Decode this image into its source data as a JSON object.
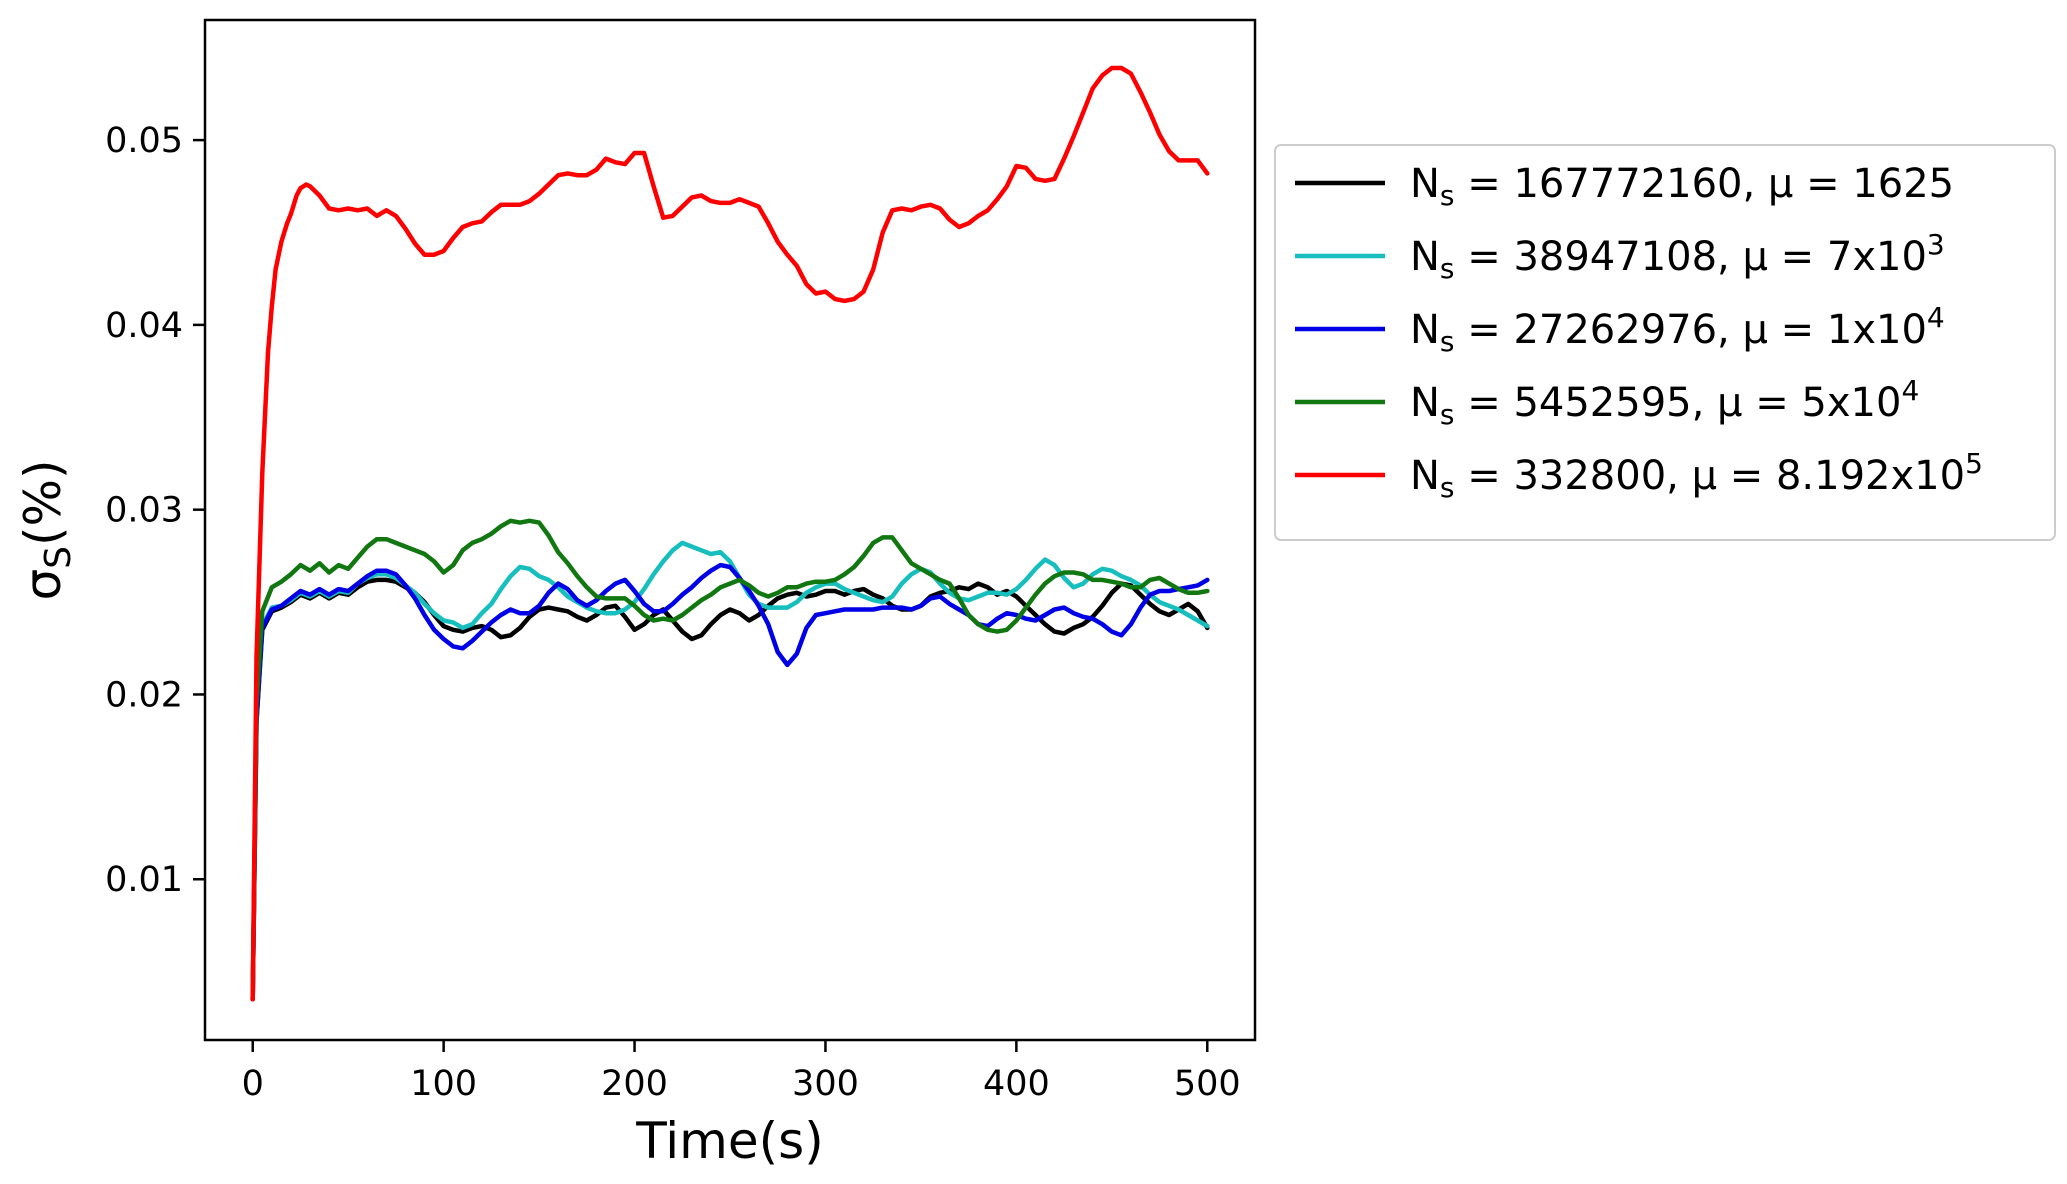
{
  "chart_data": {
    "type": "line",
    "title": "",
    "xlabel": "Time(s)",
    "ylabel": {
      "main": "σ",
      "sub": "S",
      "suffix": "(%)"
    },
    "xlim": [
      -25,
      525
    ],
    "ylim": [
      0.0013,
      0.0565
    ],
    "xticks": [
      0,
      100,
      200,
      300,
      400,
      500
    ],
    "xtick_labels": [
      "0",
      "100",
      "200",
      "300",
      "400",
      "500"
    ],
    "yticks": [
      0.01,
      0.02,
      0.03,
      0.04,
      0.05
    ],
    "ytick_labels": [
      "0.01",
      "0.02",
      "0.03",
      "0.04",
      "0.05"
    ],
    "grid": false,
    "legend_position": "outside-right-top",
    "series": [
      {
        "name": "N_s = 167772160, μ = 1625",
        "legend": {
          "n": "N",
          "nsub": "s",
          "eq1": " = 167772160, μ = 1625",
          "sup": ""
        },
        "color": "#000000",
        "x": [
          0,
          2,
          5,
          10,
          15,
          20,
          25,
          30,
          35,
          40,
          45,
          50,
          55,
          60,
          65,
          70,
          75,
          80,
          85,
          90,
          95,
          100,
          105,
          110,
          115,
          120,
          125,
          130,
          135,
          140,
          145,
          150,
          155,
          160,
          165,
          170,
          175,
          180,
          185,
          190,
          195,
          200,
          205,
          210,
          215,
          220,
          225,
          230,
          235,
          240,
          245,
          250,
          255,
          260,
          265,
          270,
          275,
          280,
          285,
          290,
          295,
          300,
          305,
          310,
          315,
          320,
          325,
          330,
          335,
          340,
          345,
          350,
          355,
          360,
          365,
          370,
          375,
          380,
          385,
          390,
          395,
          400,
          405,
          410,
          415,
          420,
          425,
          430,
          435,
          440,
          445,
          450,
          455,
          460,
          465,
          470,
          475,
          480,
          485,
          490,
          495,
          500
        ],
        "y": [
          0.0035,
          0.0185,
          0.0235,
          0.0245,
          0.0247,
          0.025,
          0.0254,
          0.0252,
          0.0255,
          0.0252,
          0.0255,
          0.0254,
          0.0258,
          0.0261,
          0.0262,
          0.0262,
          0.0261,
          0.0258,
          0.0255,
          0.025,
          0.0243,
          0.0237,
          0.0235,
          0.0234,
          0.0236,
          0.0237,
          0.0235,
          0.0231,
          0.0232,
          0.0236,
          0.0242,
          0.0246,
          0.0247,
          0.0246,
          0.0245,
          0.0242,
          0.024,
          0.0243,
          0.0247,
          0.0248,
          0.0242,
          0.0235,
          0.0238,
          0.0243,
          0.0246,
          0.024,
          0.0234,
          0.023,
          0.0232,
          0.0238,
          0.0243,
          0.0246,
          0.0244,
          0.024,
          0.0243,
          0.0248,
          0.0252,
          0.0254,
          0.0255,
          0.0253,
          0.0254,
          0.0256,
          0.0256,
          0.0254,
          0.0256,
          0.0257,
          0.0254,
          0.0252,
          0.0248,
          0.0246,
          0.0246,
          0.0248,
          0.0253,
          0.0255,
          0.0256,
          0.0258,
          0.0257,
          0.026,
          0.0258,
          0.0254,
          0.0256,
          0.0253,
          0.0248,
          0.0243,
          0.0238,
          0.0234,
          0.0233,
          0.0236,
          0.0238,
          0.0242,
          0.0248,
          0.0255,
          0.026,
          0.0259,
          0.0254,
          0.0249,
          0.0245,
          0.0243,
          0.0246,
          0.0249,
          0.0245,
          0.0236
        ]
      },
      {
        "name": "N_s = 38947108, μ = 7x10^3",
        "legend": {
          "n": "N",
          "nsub": "s",
          "eq1": " = 38947108, μ = 7x10",
          "sup": "3"
        },
        "color": "#17bebe",
        "x": [
          0,
          2,
          5,
          10,
          15,
          20,
          25,
          30,
          35,
          40,
          45,
          50,
          55,
          60,
          65,
          70,
          75,
          80,
          85,
          90,
          95,
          100,
          105,
          110,
          115,
          120,
          125,
          130,
          135,
          140,
          145,
          150,
          155,
          160,
          165,
          170,
          175,
          180,
          185,
          190,
          195,
          200,
          205,
          210,
          215,
          220,
          225,
          230,
          235,
          240,
          245,
          250,
          255,
          260,
          265,
          270,
          275,
          280,
          285,
          290,
          295,
          300,
          305,
          310,
          315,
          320,
          325,
          330,
          335,
          340,
          345,
          350,
          355,
          360,
          365,
          370,
          375,
          380,
          385,
          390,
          395,
          400,
          405,
          410,
          415,
          420,
          425,
          430,
          435,
          440,
          445,
          450,
          455,
          460,
          465,
          470,
          475,
          480,
          485,
          490,
          495,
          500
        ],
        "y": [
          0.0035,
          0.0188,
          0.0237,
          0.0247,
          0.0248,
          0.0251,
          0.0255,
          0.0253,
          0.0256,
          0.0253,
          0.0256,
          0.0255,
          0.026,
          0.0263,
          0.0265,
          0.0265,
          0.0263,
          0.0259,
          0.0255,
          0.0249,
          0.0244,
          0.024,
          0.0239,
          0.0236,
          0.0238,
          0.0244,
          0.0249,
          0.0257,
          0.0264,
          0.0269,
          0.0268,
          0.0264,
          0.0262,
          0.0258,
          0.0253,
          0.025,
          0.0247,
          0.0245,
          0.0244,
          0.0244,
          0.0246,
          0.025,
          0.0257,
          0.0265,
          0.0272,
          0.0278,
          0.0282,
          0.028,
          0.0278,
          0.0276,
          0.0277,
          0.0272,
          0.0263,
          0.0254,
          0.0249,
          0.0247,
          0.0247,
          0.0247,
          0.025,
          0.0255,
          0.0258,
          0.026,
          0.026,
          0.0257,
          0.0255,
          0.0253,
          0.0251,
          0.025,
          0.0253,
          0.026,
          0.0265,
          0.0268,
          0.0266,
          0.026,
          0.0255,
          0.0252,
          0.0251,
          0.0253,
          0.0255,
          0.0255,
          0.0254,
          0.0257,
          0.0262,
          0.0268,
          0.0273,
          0.027,
          0.0263,
          0.0258,
          0.026,
          0.0265,
          0.0268,
          0.0267,
          0.0264,
          0.0262,
          0.0259,
          0.0254,
          0.025,
          0.0248,
          0.0246,
          0.0243,
          0.024,
          0.0237
        ]
      },
      {
        "name": "N_s = 27262976, μ = 1x10^4",
        "legend": {
          "n": "N",
          "nsub": "s",
          "eq1": " = 27262976, μ = 1x10",
          "sup": "4"
        },
        "color": "#0000e6",
        "x": [
          0,
          2,
          5,
          10,
          15,
          20,
          25,
          30,
          35,
          40,
          45,
          50,
          55,
          60,
          65,
          70,
          75,
          80,
          85,
          90,
          95,
          100,
          105,
          110,
          115,
          120,
          125,
          130,
          135,
          140,
          145,
          150,
          155,
          160,
          165,
          170,
          175,
          180,
          185,
          190,
          195,
          200,
          205,
          210,
          215,
          220,
          225,
          230,
          235,
          240,
          245,
          250,
          255,
          260,
          265,
          270,
          275,
          280,
          285,
          290,
          295,
          300,
          305,
          310,
          315,
          320,
          325,
          330,
          335,
          340,
          345,
          350,
          355,
          360,
          365,
          370,
          375,
          380,
          385,
          390,
          395,
          400,
          405,
          410,
          415,
          420,
          425,
          430,
          435,
          440,
          445,
          450,
          455,
          460,
          465,
          470,
          475,
          480,
          485,
          490,
          495,
          500
        ],
        "y": [
          0.0035,
          0.0187,
          0.0236,
          0.0246,
          0.0248,
          0.0252,
          0.0256,
          0.0254,
          0.0257,
          0.0254,
          0.0257,
          0.0256,
          0.026,
          0.0264,
          0.0267,
          0.0267,
          0.0265,
          0.0259,
          0.0252,
          0.0243,
          0.0235,
          0.023,
          0.0226,
          0.0225,
          0.0229,
          0.0234,
          0.0239,
          0.0243,
          0.0246,
          0.0244,
          0.0244,
          0.0248,
          0.0255,
          0.026,
          0.0257,
          0.0251,
          0.0248,
          0.0251,
          0.0256,
          0.026,
          0.0262,
          0.0256,
          0.0249,
          0.0245,
          0.0245,
          0.0249,
          0.0254,
          0.0258,
          0.0263,
          0.0267,
          0.027,
          0.0269,
          0.0263,
          0.0256,
          0.0248,
          0.0238,
          0.0223,
          0.0216,
          0.0222,
          0.0236,
          0.0243,
          0.0244,
          0.0245,
          0.0246,
          0.0246,
          0.0246,
          0.0246,
          0.0247,
          0.0247,
          0.0247,
          0.0246,
          0.0248,
          0.0252,
          0.0253,
          0.0249,
          0.0246,
          0.0243,
          0.0238,
          0.0237,
          0.0241,
          0.0244,
          0.0243,
          0.0241,
          0.024,
          0.0243,
          0.0246,
          0.0247,
          0.0244,
          0.0242,
          0.0241,
          0.0238,
          0.0234,
          0.0232,
          0.0238,
          0.0247,
          0.0254,
          0.0256,
          0.0256,
          0.0257,
          0.0258,
          0.0259,
          0.0262
        ]
      },
      {
        "name": "N_s = 5452595, μ = 5x10^4",
        "legend": {
          "n": "N",
          "nsub": "s",
          "eq1": " = 5452595, μ = 5x10",
          "sup": "4"
        },
        "color": "#117711",
        "x": [
          0,
          2,
          5,
          10,
          15,
          20,
          25,
          30,
          35,
          40,
          45,
          50,
          55,
          60,
          65,
          70,
          75,
          80,
          85,
          90,
          95,
          100,
          105,
          110,
          115,
          120,
          125,
          130,
          135,
          140,
          145,
          150,
          155,
          160,
          165,
          170,
          175,
          180,
          185,
          190,
          195,
          200,
          205,
          210,
          215,
          220,
          225,
          230,
          235,
          240,
          245,
          250,
          255,
          260,
          265,
          270,
          275,
          280,
          285,
          290,
          295,
          300,
          305,
          310,
          315,
          320,
          325,
          330,
          335,
          340,
          345,
          350,
          355,
          360,
          365,
          370,
          375,
          380,
          385,
          390,
          395,
          400,
          405,
          410,
          415,
          420,
          425,
          430,
          435,
          440,
          445,
          450,
          455,
          460,
          465,
          470,
          475,
          480,
          485,
          490,
          495,
          500
        ],
        "y": [
          0.0035,
          0.0195,
          0.0245,
          0.0258,
          0.0261,
          0.0265,
          0.027,
          0.0267,
          0.0271,
          0.0266,
          0.027,
          0.0268,
          0.0274,
          0.028,
          0.0284,
          0.0284,
          0.0282,
          0.028,
          0.0278,
          0.0276,
          0.0272,
          0.0266,
          0.027,
          0.0278,
          0.0282,
          0.0284,
          0.0287,
          0.0291,
          0.0294,
          0.0293,
          0.0294,
          0.0293,
          0.0286,
          0.0277,
          0.0271,
          0.0264,
          0.0258,
          0.0253,
          0.0252,
          0.0252,
          0.0252,
          0.0248,
          0.0243,
          0.024,
          0.0241,
          0.024,
          0.0243,
          0.0247,
          0.0251,
          0.0254,
          0.0258,
          0.026,
          0.0262,
          0.0259,
          0.0255,
          0.0253,
          0.0255,
          0.0258,
          0.0258,
          0.026,
          0.0261,
          0.0261,
          0.0262,
          0.0265,
          0.0269,
          0.0275,
          0.0282,
          0.0285,
          0.0285,
          0.0278,
          0.0271,
          0.0268,
          0.0265,
          0.0262,
          0.026,
          0.0252,
          0.0243,
          0.0238,
          0.0235,
          0.0234,
          0.0235,
          0.024,
          0.0247,
          0.0254,
          0.026,
          0.0264,
          0.0266,
          0.0266,
          0.0265,
          0.0262,
          0.0262,
          0.0261,
          0.026,
          0.0258,
          0.0258,
          0.0262,
          0.0263,
          0.026,
          0.0257,
          0.0255,
          0.0255,
          0.0256
        ]
      },
      {
        "name": "N_s = 332800, μ = 8.192x10^5",
        "legend": {
          "n": "N",
          "nsub": "s",
          "eq1": " = 332800, μ = 8.192x10",
          "sup": "5"
        },
        "color": "#ff0000",
        "x": [
          0,
          2,
          5,
          8,
          10,
          12,
          15,
          18,
          20,
          23,
          25,
          28,
          30,
          35,
          40,
          45,
          50,
          55,
          60,
          65,
          70,
          75,
          80,
          85,
          90,
          95,
          100,
          105,
          110,
          115,
          120,
          125,
          130,
          135,
          140,
          145,
          150,
          155,
          160,
          165,
          170,
          175,
          180,
          185,
          190,
          195,
          200,
          205,
          210,
          215,
          220,
          225,
          230,
          235,
          240,
          245,
          250,
          255,
          260,
          265,
          270,
          275,
          280,
          285,
          290,
          295,
          300,
          305,
          310,
          315,
          320,
          325,
          330,
          335,
          340,
          345,
          350,
          355,
          360,
          365,
          370,
          375,
          380,
          385,
          390,
          395,
          400,
          405,
          410,
          415,
          420,
          425,
          430,
          435,
          440,
          445,
          450,
          455,
          460,
          465,
          470,
          475,
          480,
          485,
          490,
          495,
          500
        ],
        "y": [
          0.0035,
          0.022,
          0.032,
          0.0385,
          0.041,
          0.043,
          0.0445,
          0.0455,
          0.046,
          0.047,
          0.0474,
          0.0476,
          0.0475,
          0.047,
          0.0463,
          0.0462,
          0.0463,
          0.0462,
          0.0463,
          0.0459,
          0.0462,
          0.0459,
          0.0452,
          0.0444,
          0.0438,
          0.0438,
          0.044,
          0.0447,
          0.0453,
          0.0455,
          0.0456,
          0.0461,
          0.0465,
          0.0465,
          0.0465,
          0.0467,
          0.0471,
          0.0476,
          0.0481,
          0.0482,
          0.0481,
          0.0481,
          0.0484,
          0.049,
          0.0488,
          0.0487,
          0.0493,
          0.0493,
          0.0475,
          0.0458,
          0.0459,
          0.0464,
          0.0469,
          0.047,
          0.0467,
          0.0466,
          0.0466,
          0.0468,
          0.0466,
          0.0464,
          0.0455,
          0.0445,
          0.0438,
          0.0432,
          0.0422,
          0.0417,
          0.0418,
          0.0414,
          0.0413,
          0.0414,
          0.0418,
          0.043,
          0.045,
          0.0462,
          0.0463,
          0.0462,
          0.0464,
          0.0465,
          0.0463,
          0.0457,
          0.0453,
          0.0455,
          0.0459,
          0.0462,
          0.0468,
          0.0475,
          0.0486,
          0.0485,
          0.0479,
          0.0478,
          0.0479,
          0.049,
          0.0502,
          0.0515,
          0.0528,
          0.0535,
          0.0539,
          0.0539,
          0.0536,
          0.0526,
          0.0515,
          0.0503,
          0.0494,
          0.0489,
          0.0489,
          0.0489,
          0.0482
        ]
      }
    ]
  }
}
